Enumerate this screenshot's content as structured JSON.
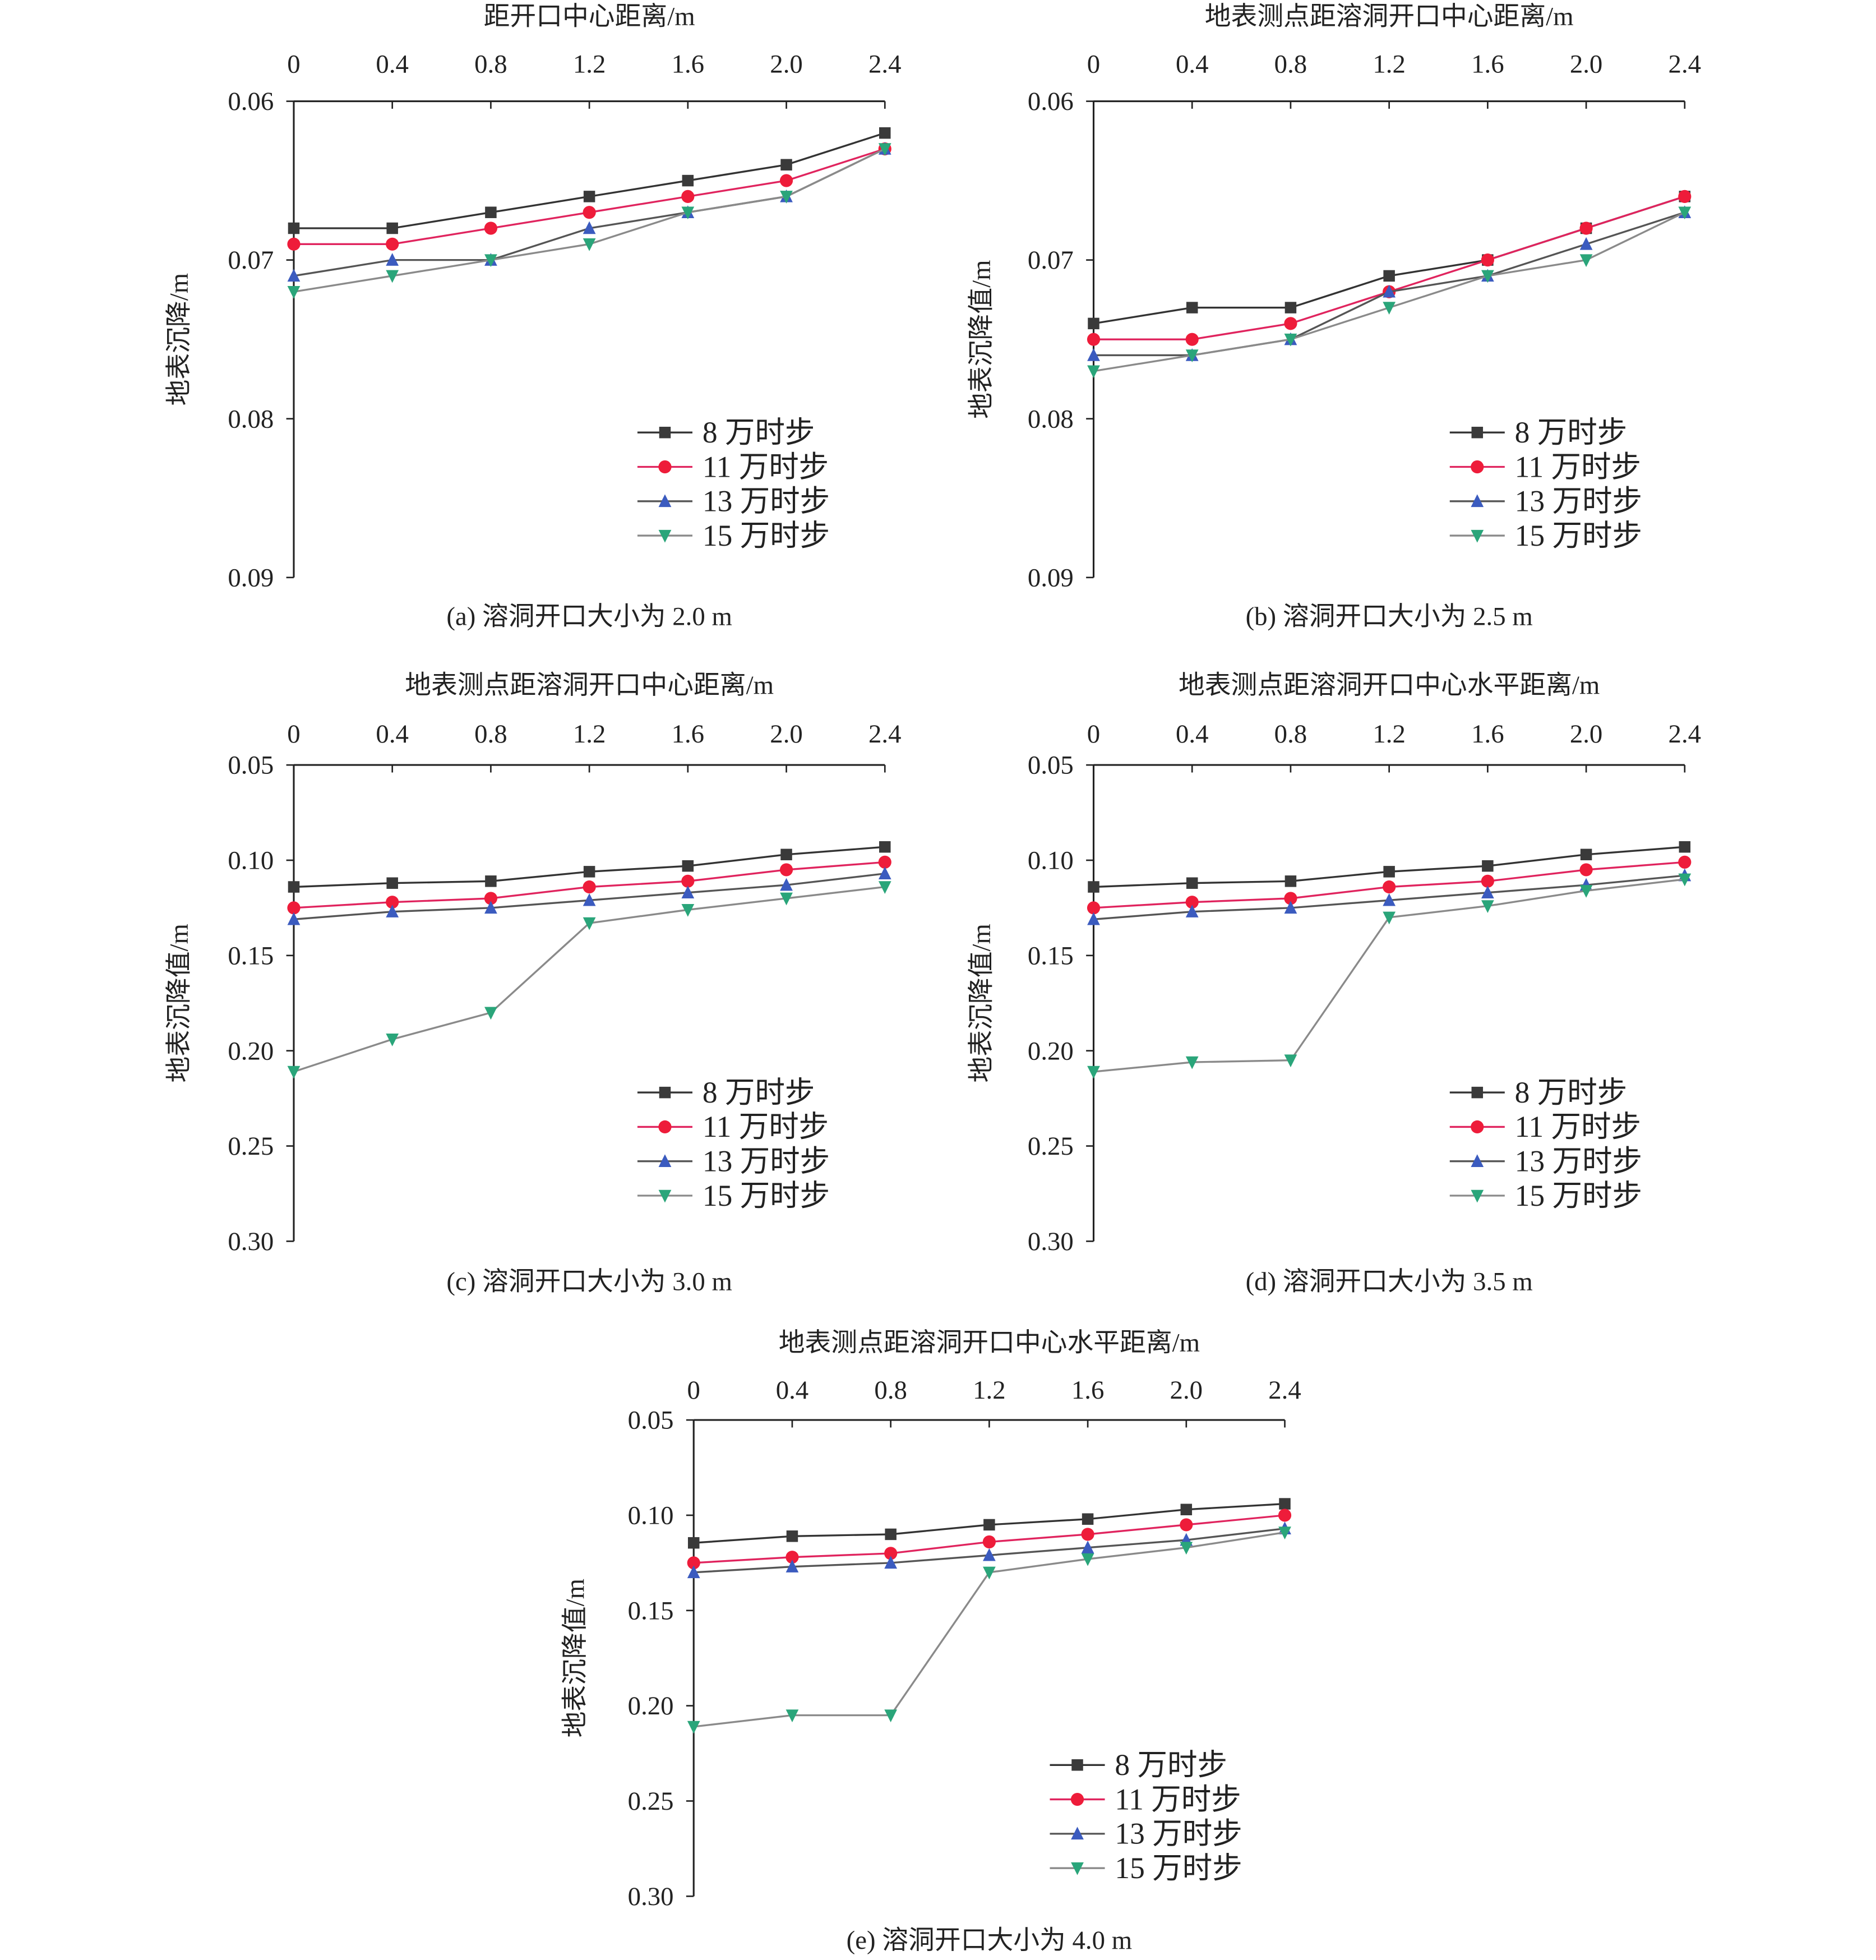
{
  "colors": {
    "axis": "#222222",
    "s8": {
      "line": "#333333",
      "marker": "#3a3a3a"
    },
    "s11": {
      "line": "#e0245e",
      "marker": "#ee1c3a"
    },
    "s13": {
      "line": "#555555",
      "marker": "#3b5bbf"
    },
    "s15": {
      "line": "#8a8a8a",
      "marker": "#2aa57a"
    }
  },
  "chart_data": [
    {
      "type": "line",
      "panel": "a",
      "title": "距开口中心距离/m",
      "ylabel": "地表沉降/m",
      "caption": "(a) 溶洞开口大小为 2.0 m",
      "x": [
        0,
        0.4,
        0.8,
        1.2,
        1.6,
        2.0,
        2.4
      ],
      "xtick_labels": [
        "0",
        "0.4",
        "0.8",
        "1.2",
        "1.6",
        "2.0",
        "2.4"
      ],
      "xaxis_position": "top",
      "ylim": [
        0.06,
        0.09
      ],
      "y_inverted": true,
      "yticks": [
        0.06,
        0.07,
        0.08,
        0.09
      ],
      "ytick_labels": [
        "0.06",
        "0.07",
        "0.08",
        "0.09"
      ],
      "legend_position": "bottom-right",
      "series": [
        {
          "name": "8 万时步",
          "marker": "square",
          "values": [
            0.068,
            0.068,
            0.067,
            0.066,
            0.065,
            0.064,
            0.062
          ]
        },
        {
          "name": "11 万时步",
          "marker": "circle",
          "values": [
            0.069,
            0.069,
            0.068,
            0.067,
            0.066,
            0.065,
            0.063
          ]
        },
        {
          "name": "13 万时步",
          "marker": "triangle-up",
          "values": [
            0.071,
            0.07,
            0.07,
            0.068,
            0.067,
            0.066,
            0.063
          ]
        },
        {
          "name": "15 万时步",
          "marker": "triangle-down",
          "values": [
            0.072,
            0.071,
            0.07,
            0.069,
            0.067,
            0.066,
            0.063
          ]
        }
      ]
    },
    {
      "type": "line",
      "panel": "b",
      "title": "地表测点距溶洞开口中心距离/m",
      "ylabel": "地表沉降值/m",
      "caption": "(b) 溶洞开口大小为 2.5 m",
      "x": [
        0,
        0.4,
        0.8,
        1.2,
        1.6,
        2.0,
        2.4
      ],
      "xtick_labels": [
        "0",
        "0.4",
        "0.8",
        "1.2",
        "1.6",
        "2.0",
        "2.4"
      ],
      "xaxis_position": "top",
      "ylim": [
        0.06,
        0.09
      ],
      "y_inverted": true,
      "yticks": [
        0.06,
        0.07,
        0.08,
        0.09
      ],
      "ytick_labels": [
        "0.06",
        "0.07",
        "0.08",
        "0.09"
      ],
      "legend_position": "bottom-right",
      "series": [
        {
          "name": "8 万时步",
          "marker": "square",
          "values": [
            0.074,
            0.073,
            0.073,
            0.071,
            0.07,
            0.068,
            0.066
          ]
        },
        {
          "name": "11 万时步",
          "marker": "circle",
          "values": [
            0.075,
            0.075,
            0.074,
            0.072,
            0.07,
            0.068,
            0.066
          ]
        },
        {
          "name": "13 万时步",
          "marker": "triangle-up",
          "values": [
            0.076,
            0.076,
            0.075,
            0.072,
            0.071,
            0.069,
            0.067
          ]
        },
        {
          "name": "15 万时步",
          "marker": "triangle-down",
          "values": [
            0.077,
            0.076,
            0.075,
            0.073,
            0.071,
            0.07,
            0.067
          ]
        }
      ]
    },
    {
      "type": "line",
      "panel": "c",
      "title": "地表测点距溶洞开口中心距离/m",
      "ylabel": "地表沉降值/m",
      "caption": "(c) 溶洞开口大小为 3.0 m",
      "x": [
        0,
        0.4,
        0.8,
        1.2,
        1.6,
        2.0,
        2.4
      ],
      "xtick_labels": [
        "0",
        "0.4",
        "0.8",
        "1.2",
        "1.6",
        "2.0",
        "2.4"
      ],
      "xaxis_position": "top",
      "ylim": [
        0.05,
        0.3
      ],
      "y_inverted": true,
      "yticks": [
        0.05,
        0.1,
        0.15,
        0.2,
        0.25,
        0.3
      ],
      "ytick_labels": [
        "0.05",
        "0.10",
        "0.15",
        "0.20",
        "0.25",
        "0.30"
      ],
      "legend_position": "bottom-right",
      "series": [
        {
          "name": "8 万时步",
          "marker": "square",
          "values": [
            0.114,
            0.112,
            0.111,
            0.106,
            0.103,
            0.097,
            0.093
          ]
        },
        {
          "name": "11 万时步",
          "marker": "circle",
          "values": [
            0.125,
            0.122,
            0.12,
            0.114,
            0.111,
            0.105,
            0.101
          ]
        },
        {
          "name": "13 万时步",
          "marker": "triangle-up",
          "values": [
            0.131,
            0.127,
            0.125,
            0.121,
            0.117,
            0.113,
            0.107
          ]
        },
        {
          "name": "15 万时步",
          "marker": "triangle-down",
          "values": [
            0.211,
            0.194,
            0.18,
            0.133,
            0.126,
            0.12,
            0.114
          ]
        }
      ]
    },
    {
      "type": "line",
      "panel": "d",
      "title": "地表测点距溶洞开口中心水平距离/m",
      "ylabel": "地表沉降值/m",
      "caption": "(d) 溶洞开口大小为 3.5 m",
      "x": [
        0,
        0.4,
        0.8,
        1.2,
        1.6,
        2.0,
        2.4
      ],
      "xtick_labels": [
        "0",
        "0.4",
        "0.8",
        "1.2",
        "1.6",
        "2.0",
        "2.4"
      ],
      "xaxis_position": "top",
      "ylim": [
        0.05,
        0.3
      ],
      "y_inverted": true,
      "yticks": [
        0.05,
        0.1,
        0.15,
        0.2,
        0.25,
        0.3
      ],
      "ytick_labels": [
        "0.05",
        "0.10",
        "0.15",
        "0.20",
        "0.25",
        "0.30"
      ],
      "legend_position": "bottom-right",
      "series": [
        {
          "name": "8 万时步",
          "marker": "square",
          "values": [
            0.114,
            0.112,
            0.111,
            0.106,
            0.103,
            0.097,
            0.093
          ]
        },
        {
          "name": "11 万时步",
          "marker": "circle",
          "values": [
            0.125,
            0.122,
            0.12,
            0.114,
            0.111,
            0.105,
            0.101
          ]
        },
        {
          "name": "13 万时步",
          "marker": "triangle-up",
          "values": [
            0.131,
            0.127,
            0.125,
            0.121,
            0.117,
            0.113,
            0.108
          ]
        },
        {
          "name": "15 万时步",
          "marker": "triangle-down",
          "values": [
            0.211,
            0.206,
            0.205,
            0.13,
            0.124,
            0.116,
            0.11
          ]
        }
      ]
    },
    {
      "type": "line",
      "panel": "e",
      "title": "地表测点距溶洞开口中心水平距离/m",
      "ylabel": "地表沉降值/m",
      "caption": "(e) 溶洞开口大小为 4.0 m",
      "x": [
        0,
        0.4,
        0.8,
        1.2,
        1.6,
        2.0,
        2.4
      ],
      "xtick_labels": [
        "0",
        "0.4",
        "0.8",
        "1.2",
        "1.6",
        "2.0",
        "2.4"
      ],
      "xaxis_position": "top",
      "ylim": [
        0.05,
        0.3
      ],
      "y_inverted": true,
      "yticks": [
        0.05,
        0.1,
        0.15,
        0.2,
        0.25,
        0.3
      ],
      "ytick_labels": [
        "0.05",
        "0.10",
        "0.15",
        "0.20",
        "0.25",
        "0.30"
      ],
      "legend_position": "bottom-right",
      "series": [
        {
          "name": "8 万时步",
          "marker": "square",
          "values": [
            0.1145,
            0.111,
            0.11,
            0.105,
            0.102,
            0.097,
            0.094
          ]
        },
        {
          "name": "11 万时步",
          "marker": "circle",
          "values": [
            0.125,
            0.122,
            0.12,
            0.114,
            0.11,
            0.105,
            0.1
          ]
        },
        {
          "name": "13 万时步",
          "marker": "triangle-up",
          "values": [
            0.13,
            0.127,
            0.125,
            0.121,
            0.117,
            0.113,
            0.107
          ]
        },
        {
          "name": "15 万时步",
          "marker": "triangle-down",
          "values": [
            0.211,
            0.205,
            0.205,
            0.13,
            0.123,
            0.117,
            0.109
          ]
        }
      ]
    }
  ]
}
